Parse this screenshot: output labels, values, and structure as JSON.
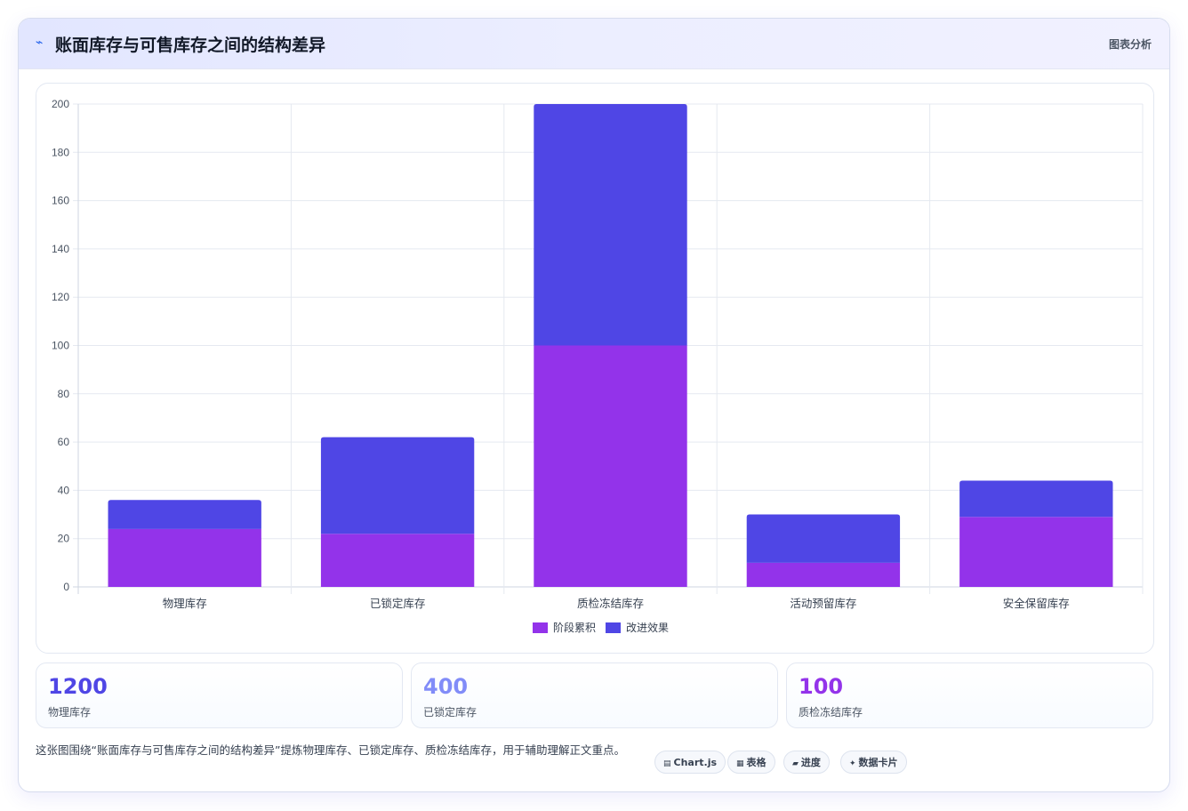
{
  "header": {
    "icon": "chart-line-icon",
    "title": "账面库存与可售库存之间的结构差异",
    "action": "图表分析"
  },
  "chart_data": {
    "type": "bar",
    "stacked": true,
    "categories": [
      "物理库存",
      "已锁定库存",
      "质检冻结库存",
      "活动预留库存",
      "安全保留库存"
    ],
    "series": [
      {
        "name": "阶段累积",
        "color": "#9333ea",
        "values": [
          24,
          22,
          100,
          10,
          29
        ]
      },
      {
        "name": "改进效果",
        "color": "#4f46e5",
        "values": [
          12,
          40,
          100,
          20,
          15
        ]
      }
    ],
    "ylim": [
      0,
      200
    ],
    "yticks": [
      0,
      20,
      40,
      60,
      80,
      100,
      120,
      140,
      160,
      180,
      200
    ],
    "grid": true,
    "legend": "bottom"
  },
  "stats": [
    {
      "value": "1200",
      "label": "物理库存",
      "color": "#4f46e5"
    },
    {
      "value": "400",
      "label": "已锁定库存",
      "color": "#818cf8"
    },
    {
      "value": "100",
      "label": "质检冻结库存",
      "color": "#9333ea"
    }
  ],
  "description": "这张图围绕“账面库存与可售库存之间的结构差异”提炼物理库存、已锁定库存、质检冻结库存，用于辅助理解正文重点。",
  "chips": [
    {
      "icon": "▤",
      "label": "Chart.js"
    },
    {
      "icon": "▦",
      "label": "表格"
    },
    {
      "icon": "▰",
      "label": "进度"
    },
    {
      "icon": "✦",
      "label": "数据卡片"
    }
  ]
}
